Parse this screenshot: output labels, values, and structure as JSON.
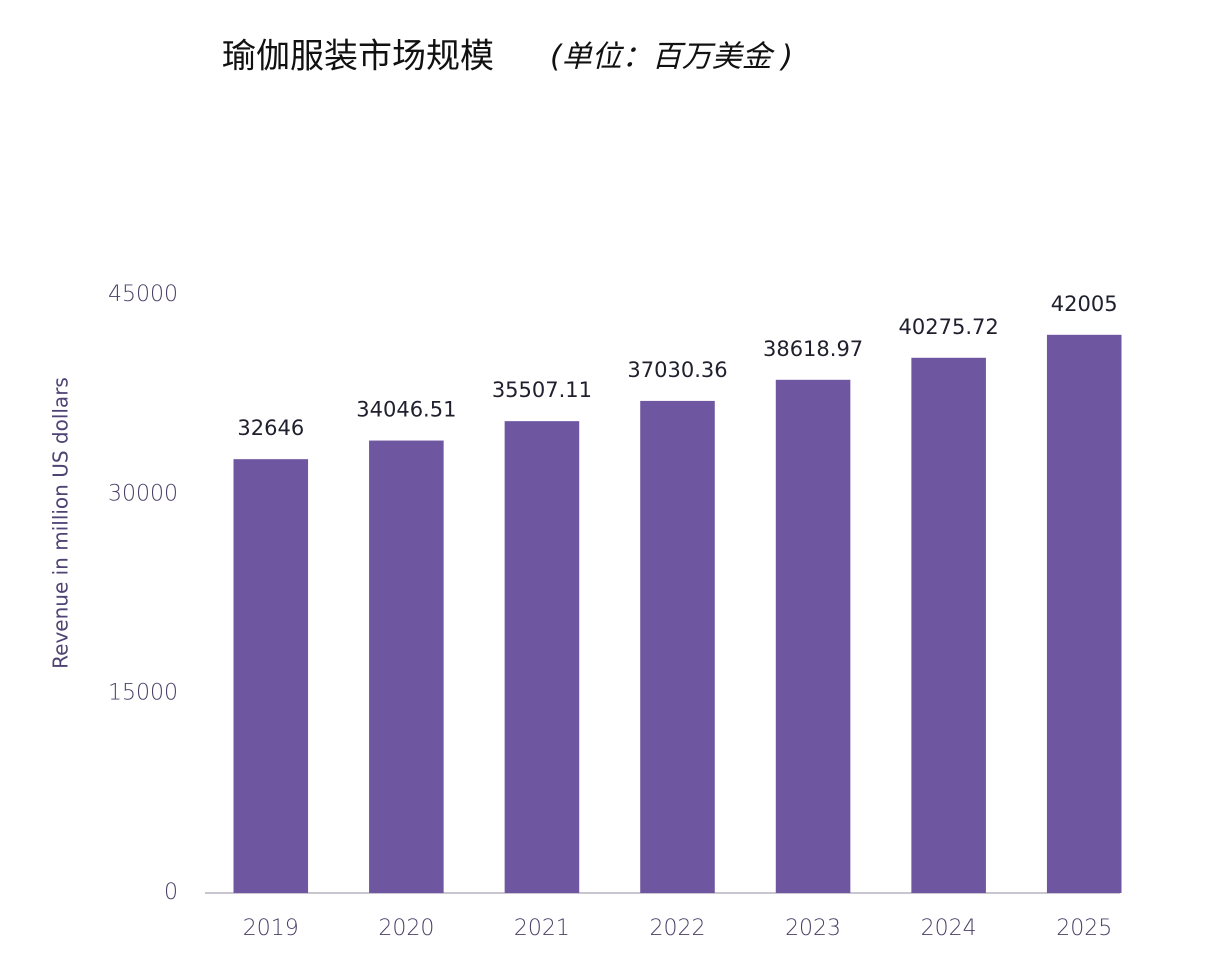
{
  "chart_data": {
    "type": "bar",
    "title": "瑜伽服装市场规模",
    "subtitle": "(单位：百万美金 )",
    "y_label": "Revenue in million US dollars",
    "categories": [
      "2019",
      "2020",
      "2021",
      "2022",
      "2023",
      "2024",
      "2025"
    ],
    "values": [
      32646,
      34046.51,
      35507.11,
      37030.36,
      38618.97,
      40275.72,
      42005
    ],
    "color": "#6e56a0",
    "ylim": [
      0,
      45000
    ],
    "yticks": [
      0,
      15000,
      30000,
      45000
    ],
    "grid": false
  }
}
